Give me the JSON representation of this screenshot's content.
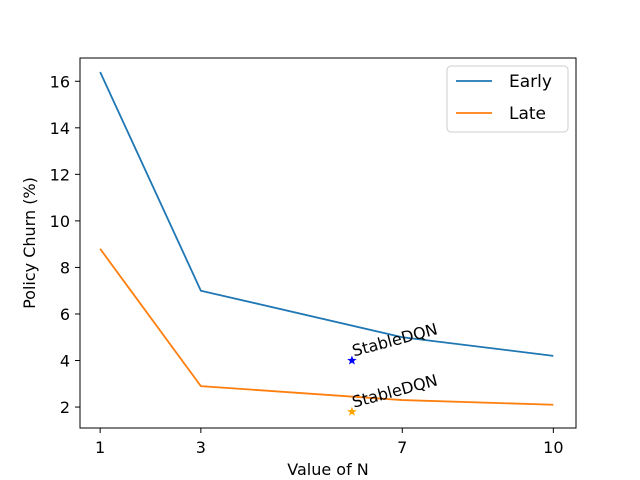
{
  "chart_data": {
    "type": "line",
    "title": "",
    "xlabel": "Value of N",
    "ylabel": "Policy Churn (%)",
    "x": [
      1,
      3,
      7,
      10
    ],
    "xticks": [
      1,
      3,
      7,
      10
    ],
    "xlim": [
      0.6,
      10.45
    ],
    "yticks": [
      2,
      4,
      6,
      8,
      10,
      12,
      14,
      16
    ],
    "ylim": [
      1.1,
      17.0
    ],
    "grid": false,
    "legend_position": "top-right",
    "series": [
      {
        "name": "Early",
        "color": "#1f77b4",
        "values": [
          16.4,
          7.0,
          5.0,
          4.2
        ]
      },
      {
        "name": "Late",
        "color": "#ff7f0e",
        "values": [
          8.8,
          2.9,
          2.3,
          2.1
        ]
      }
    ],
    "markers": [
      {
        "label": "StableDQN",
        "x": 6.0,
        "y": 4.0,
        "color": "#0000ff",
        "shape": "star"
      },
      {
        "label": "StableDQN",
        "x": 6.0,
        "y": 1.8,
        "color": "#ffa500",
        "shape": "star"
      }
    ]
  }
}
